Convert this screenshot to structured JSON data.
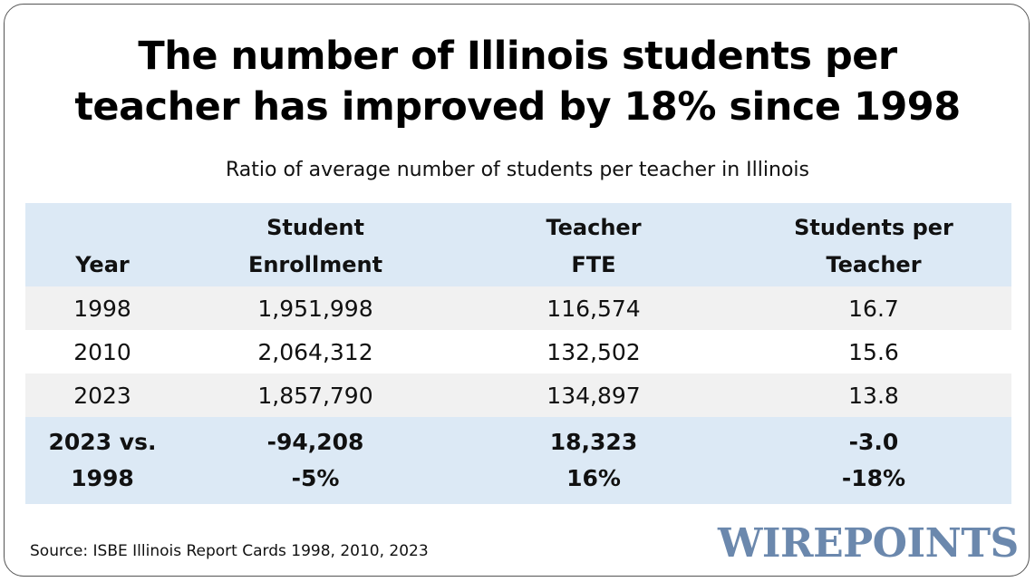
{
  "title": {
    "line1": "The number of Illinois students per",
    "line2": "teacher has improved by 18% since 1998"
  },
  "subtitle": "Ratio of average number of students per teacher in Illinois",
  "table": {
    "headers": {
      "year": [
        "Year"
      ],
      "enrollment": [
        "Student",
        "Enrollment"
      ],
      "teacher_fte": [
        "Teacher",
        "FTE"
      ],
      "students_per_teacher": [
        "Students per",
        "Teacher"
      ]
    },
    "rows": [
      {
        "year": "1998",
        "enrollment": "1,951,998",
        "teacher_fte": "116,574",
        "students_per_teacher": "16.7"
      },
      {
        "year": "2010",
        "enrollment": "2,064,312",
        "teacher_fte": "132,502",
        "students_per_teacher": "15.6"
      },
      {
        "year": "2023",
        "enrollment": "1,857,790",
        "teacher_fte": "134,897",
        "students_per_teacher": "13.8"
      }
    ],
    "summary": {
      "label": [
        "2023 vs.",
        "1998"
      ],
      "enrollment": [
        "-94,208",
        "-5%"
      ],
      "teacher_fte": [
        "18,323",
        "16%"
      ],
      "students_per_teacher": [
        "-3.0",
        "-18%"
      ]
    }
  },
  "source": "Source: ISBE Illinois Report Cards 1998, 2010, 2023",
  "logo_text": "WIREPOINTS",
  "colors": {
    "header_fill": "#dce9f5",
    "shaded_row": "#f1f1f1",
    "logo": "#6b88ad",
    "border": "#555555"
  },
  "chart_data": {
    "type": "table",
    "title": "The number of Illinois students per teacher has improved by 18% since 1998",
    "subtitle": "Ratio of average number of students per teacher in Illinois",
    "columns": [
      "Year",
      "Student Enrollment",
      "Teacher FTE",
      "Students per Teacher"
    ],
    "rows": [
      [
        1998,
        1951998,
        116574,
        16.7
      ],
      [
        2010,
        2064312,
        132502,
        15.6
      ],
      [
        2023,
        1857790,
        134897,
        13.8
      ]
    ],
    "summary": {
      "label": "2023 vs. 1998",
      "absolute_change": [
        -94208,
        18323,
        -3.0
      ],
      "percent_change": [
        -5,
        16,
        -18
      ]
    }
  }
}
